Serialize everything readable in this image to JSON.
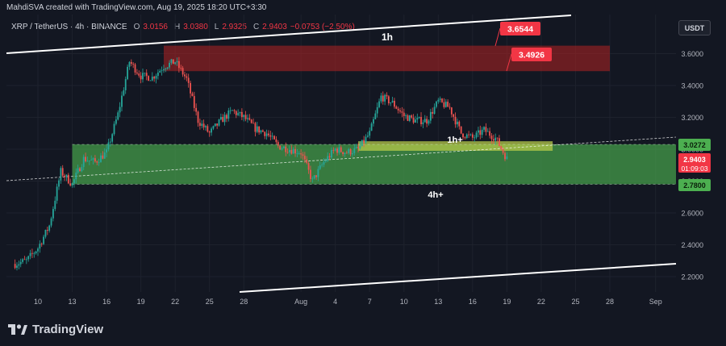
{
  "header": {
    "published_by": "MahdiSVA created with TradingView.com, Aug 19, 2025 18:20 UTC+3:30"
  },
  "legend": {
    "symbol": "XRP / TetherUS · 4h · BINANCE",
    "o_label": "O",
    "o_value": "3.0156",
    "h_label": "H",
    "h_value": "3.0380",
    "l_label": "L",
    "l_value": "2.9325",
    "c_label": "C",
    "c_value": "2.9403",
    "change": "−0.0753 (−2.50%)"
  },
  "currency": "USDT",
  "brand": {
    "name": "TradingView",
    "logo_icon": "tradingview-logo-icon"
  },
  "colors": {
    "bull": "#26a69a",
    "bear": "#ef5350",
    "demand_zone": "#4caf50",
    "supply_zone": "#b22222",
    "trendline": "#ffffff",
    "callout": "#f23645",
    "last_price": "#f23645",
    "green_label": "#4caf50"
  },
  "chart_data": {
    "type": "candlestick",
    "title": "",
    "xlabel": "",
    "ylabel": "",
    "x_tick_labels": [
      "10",
      "13",
      "16",
      "19",
      "22",
      "25",
      "28",
      "Aug",
      "4",
      "7",
      "10",
      "13",
      "16",
      "19",
      "22",
      "25",
      "28",
      "Sep"
    ],
    "y_tick_labels": [
      "2.2000",
      "2.4000",
      "2.6000",
      "2.8000",
      "3.0000",
      "3.2000",
      "3.4000",
      "3.6000"
    ],
    "ylim": [
      2.18,
      3.84
    ],
    "grid": true,
    "price_path": [
      [
        "Jul 8",
        2.28
      ],
      [
        "Jul 9",
        2.3
      ],
      [
        "Jul 10",
        2.38
      ],
      [
        "Jul 11",
        2.52
      ],
      [
        "Jul 12",
        2.86
      ],
      [
        "Jul 13",
        2.78
      ],
      [
        "Jul 14",
        2.94
      ],
      [
        "Jul 15",
        2.92
      ],
      [
        "Jul 16",
        2.98
      ],
      [
        "Jul 17",
        3.22
      ],
      [
        "Jul 18",
        3.55
      ],
      [
        "Jul 19",
        3.46
      ],
      [
        "Jul 20",
        3.45
      ],
      [
        "Jul 21",
        3.52
      ],
      [
        "Jul 22",
        3.55
      ],
      [
        "Jul 23",
        3.44
      ],
      [
        "Jul 24",
        3.18
      ],
      [
        "Jul 25",
        3.1
      ],
      [
        "Jul 26",
        3.18
      ],
      [
        "Jul 27",
        3.24
      ],
      [
        "Jul 28",
        3.2
      ],
      [
        "Jul 29",
        3.13
      ],
      [
        "Jul 30",
        3.1
      ],
      [
        "Jul 31",
        3.02
      ],
      [
        "Aug 1",
        2.98
      ],
      [
        "Aug 2",
        2.8
      ],
      [
        "Aug 3",
        2.92
      ],
      [
        "Aug 4",
        3.0
      ],
      [
        "Aug 5",
        2.98
      ],
      [
        "Aug 6",
        3.0
      ],
      [
        "Aug 7",
        3.1
      ],
      [
        "Aug 8",
        3.33
      ],
      [
        "Aug 9",
        3.29
      ],
      [
        "Aug 10",
        3.21
      ],
      [
        "Aug 11",
        3.18
      ],
      [
        "Aug 12",
        3.18
      ],
      [
        "Aug 13",
        3.3
      ],
      [
        "Aug 14",
        3.26
      ],
      [
        "Aug 15",
        3.1
      ],
      [
        "Aug 16",
        3.07
      ],
      [
        "Aug 17",
        3.12
      ],
      [
        "Aug 18",
        3.07
      ],
      [
        "Aug 19",
        2.94
      ]
    ],
    "zones": [
      {
        "name": "supply",
        "from": 3.49,
        "to": 3.65,
        "start": "Jul 21",
        "end": "Aug 28"
      },
      {
        "name": "demand",
        "from": 2.78,
        "to": 3.03,
        "start": "Jul 13",
        "end": "Sep 5"
      },
      {
        "name": "minor-demand",
        "from": 2.99,
        "to": 3.05,
        "start": "Aug 6",
        "end": "Aug 23"
      }
    ],
    "annotations": [
      {
        "text": "1h",
        "type": "label"
      },
      {
        "text": "1h+",
        "type": "label"
      },
      {
        "text": "4h+",
        "type": "label"
      },
      {
        "text": "3.6544",
        "type": "callout"
      },
      {
        "text": "3.4926",
        "type": "callout"
      }
    ],
    "price_axis_labels": [
      {
        "value": "3.0272",
        "style": "green"
      },
      {
        "value": "2.9403",
        "sub": "01:09:03",
        "style": "red"
      },
      {
        "value": "2.7800",
        "style": "green"
      }
    ]
  }
}
